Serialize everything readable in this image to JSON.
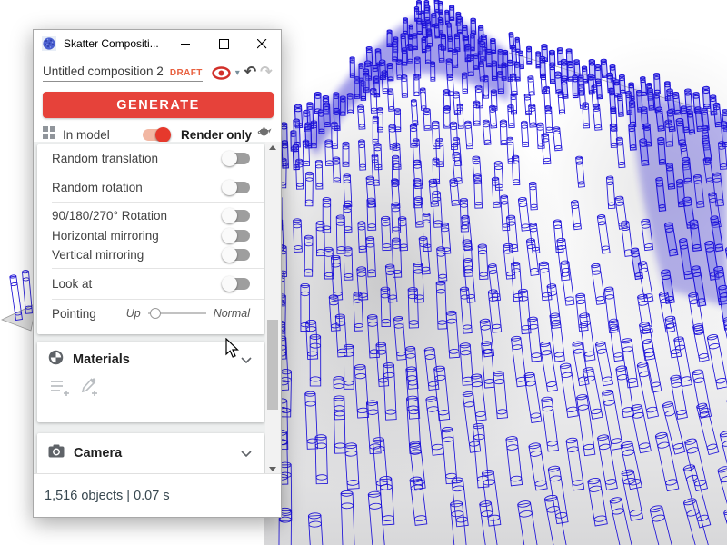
{
  "window": {
    "title": "Skatter Compositi...",
    "controls": {
      "minimize": "minimize",
      "maximize": "maximize",
      "close": "close"
    }
  },
  "composition": {
    "name": "Untitled composition 2",
    "badge": "DRAFT"
  },
  "actions": {
    "generate": "GENERATE"
  },
  "mode": {
    "in_model": "In model",
    "render_only": "Render only",
    "in_model_enabled": true
  },
  "settings": [
    {
      "label": "Random translation",
      "on": false
    },
    {
      "label": "Random rotation",
      "on": false
    },
    {
      "label": "90/180/270° Rotation",
      "on": false
    },
    {
      "label": "Horizontal mirroring",
      "on": false
    },
    {
      "label": "Vertical mirroring",
      "on": false
    },
    {
      "label": "Look at",
      "on": false
    }
  ],
  "pointing": {
    "label": "Pointing",
    "min_label": "Up",
    "max_label": "Normal",
    "value_pct": 8
  },
  "sections": {
    "materials": "Materials",
    "camera": "Camera"
  },
  "status_bar": {
    "summary": "1,516 objects | 0.07 s"
  },
  "colors": {
    "accent_red": "#e6423a",
    "draft_orange": "#e8603f",
    "toggle_on_track": "#f2b7a3",
    "toggle_on_knob": "#e6392c"
  },
  "viewport": {
    "wire_color": "#1d12d8",
    "fill_color": "rgba(122,122,238,0.40)",
    "fill_top": "rgba(168,168,248,0.55)",
    "background": "#ffffff"
  }
}
